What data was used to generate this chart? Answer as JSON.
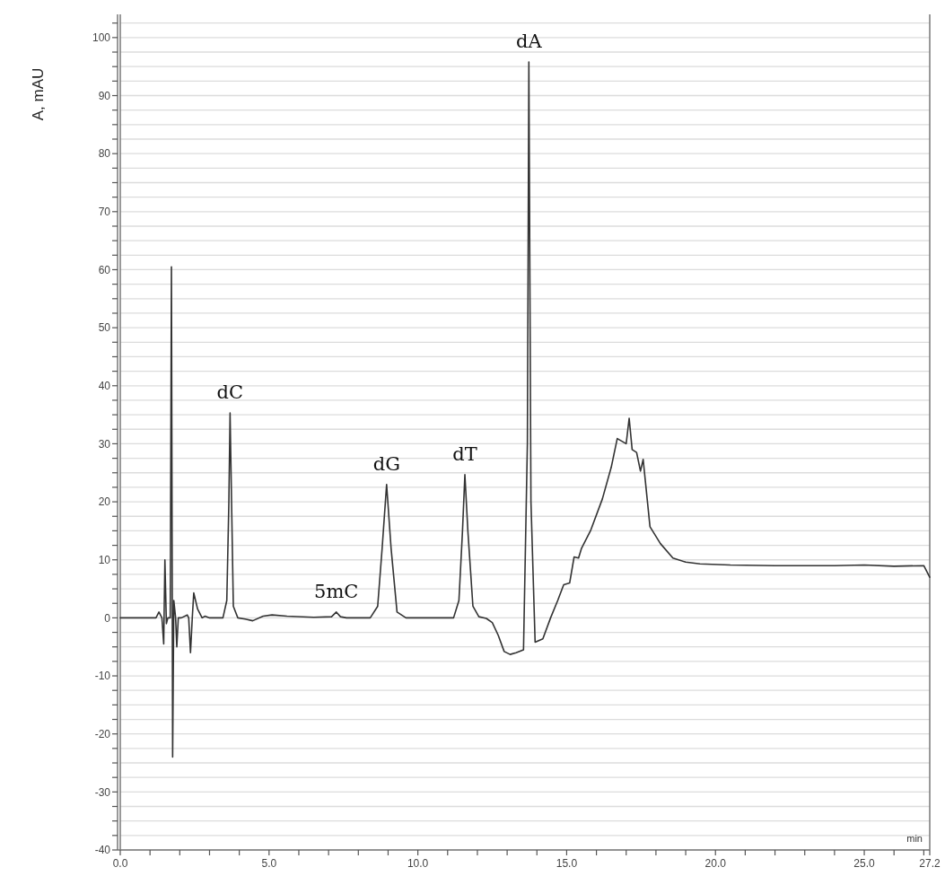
{
  "chart_data": {
    "type": "line",
    "ylabel": "A, mAU",
    "xlabel": "min",
    "grid": "y",
    "line_style": "solid",
    "marker": "none",
    "xlim": [
      0,
      27.2
    ],
    "ylim": [
      -40,
      104
    ],
    "xticks": [
      {
        "value": 0,
        "label": "0.0"
      },
      {
        "value": 1,
        "label": null
      },
      {
        "value": 2,
        "label": null
      },
      {
        "value": 3,
        "label": null
      },
      {
        "value": 4,
        "label": null
      },
      {
        "value": 5,
        "label": "5.0"
      },
      {
        "value": 6,
        "label": null
      },
      {
        "value": 7,
        "label": null
      },
      {
        "value": 8,
        "label": null
      },
      {
        "value": 9,
        "label": null
      },
      {
        "value": 10,
        "label": "10.0"
      },
      {
        "value": 11,
        "label": null
      },
      {
        "value": 12,
        "label": null
      },
      {
        "value": 13,
        "label": null
      },
      {
        "value": 14,
        "label": null
      },
      {
        "value": 15,
        "label": "15.0"
      },
      {
        "value": 16,
        "label": null
      },
      {
        "value": 17,
        "label": null
      },
      {
        "value": 18,
        "label": null
      },
      {
        "value": 19,
        "label": null
      },
      {
        "value": 20,
        "label": "20.0"
      },
      {
        "value": 21,
        "label": null
      },
      {
        "value": 22,
        "label": null
      },
      {
        "value": 23,
        "label": null
      },
      {
        "value": 24,
        "label": null
      },
      {
        "value": 25,
        "label": "25.0"
      },
      {
        "value": 26,
        "label": null
      },
      {
        "value": 27,
        "label": null
      },
      27.2
    ],
    "yticks": [
      -40,
      {
        "value": -37.5,
        "label": null
      },
      {
        "value": -35,
        "label": null
      },
      {
        "value": -32.5,
        "label": null
      },
      -30,
      {
        "value": -27.5,
        "label": null
      },
      {
        "value": -25,
        "label": null
      },
      {
        "value": -22.5,
        "label": null
      },
      -20,
      {
        "value": -17.5,
        "label": null
      },
      {
        "value": -15,
        "label": null
      },
      {
        "value": -12.5,
        "label": null
      },
      -10,
      {
        "value": -7.5,
        "label": null
      },
      {
        "value": -5,
        "label": null
      },
      {
        "value": -2.5,
        "label": null
      },
      0,
      {
        "value": 2.5,
        "label": null
      },
      {
        "value": 5,
        "label": null
      },
      {
        "value": 7.5,
        "label": null
      },
      10,
      {
        "value": 12.5,
        "label": null
      },
      {
        "value": 15,
        "label": null
      },
      {
        "value": 17.5,
        "label": null
      },
      20,
      {
        "value": 22.5,
        "label": null
      },
      {
        "value": 25,
        "label": null
      },
      {
        "value": 27.5,
        "label": null
      },
      30,
      {
        "value": 32.5,
        "label": null
      },
      {
        "value": 35,
        "label": null
      },
      {
        "value": 37.5,
        "label": null
      },
      40,
      {
        "value": 42.5,
        "label": null
      },
      {
        "value": 45,
        "label": null
      },
      {
        "value": 47.5,
        "label": null
      },
      50,
      {
        "value": 52.5,
        "label": null
      },
      {
        "value": 55,
        "label": null
      },
      {
        "value": 57.5,
        "label": null
      },
      60,
      {
        "value": 62.5,
        "label": null
      },
      {
        "value": 65,
        "label": null
      },
      {
        "value": 67.5,
        "label": null
      },
      70,
      {
        "value": 72.5,
        "label": null
      },
      {
        "value": 75,
        "label": null
      },
      {
        "value": 77.5,
        "label": null
      },
      80,
      {
        "value": 82.5,
        "label": null
      },
      {
        "value": 85,
        "label": null
      },
      {
        "value": 87.5,
        "label": null
      },
      90,
      {
        "value": 92.5,
        "label": null
      },
      {
        "value": 95,
        "label": null
      },
      {
        "value": 97.5,
        "label": null
      },
      100,
      {
        "value": 102.5,
        "label": null
      }
    ],
    "annotations": [
      {
        "text": "dC",
        "x": 3.69,
        "y": 35.3
      },
      {
        "text": "5mC",
        "x": 7.26,
        "y": 1
      },
      {
        "text": "dG",
        "x": 8.95,
        "y": 23
      },
      {
        "text": "dT",
        "x": 11.58,
        "y": 24.7
      },
      {
        "text": "dA",
        "x": 13.73,
        "y": 95.8
      }
    ],
    "series": [
      {
        "color": "#333333",
        "x": [
          0,
          1.2,
          1.3,
          1.4,
          1.46,
          1.5,
          1.55,
          1.6,
          1.68,
          1.72,
          1.76,
          1.8,
          1.86,
          1.9,
          1.95,
          2.05,
          2.25,
          2.3,
          2.36,
          2.42,
          2.47,
          2.6,
          2.75,
          2.85,
          3.0,
          3.2,
          3.45,
          3.58,
          3.65,
          3.69,
          3.74,
          3.8,
          3.95,
          4.2,
          4.45,
          4.8,
          5.1,
          5.6,
          6.5,
          7.1,
          7.26,
          7.4,
          7.6,
          8.4,
          8.65,
          8.8,
          8.95,
          9.1,
          9.3,
          9.6,
          10.5,
          11.2,
          11.38,
          11.5,
          11.58,
          11.68,
          11.85,
          12.05,
          12.3,
          12.5,
          12.7,
          12.9,
          13.1,
          13.3,
          13.55,
          13.68,
          13.73,
          13.8,
          13.94,
          14.2,
          14.46,
          14.7,
          14.9,
          15.1,
          15.25,
          15.4,
          15.5,
          15.8,
          16.2,
          16.5,
          16.7,
          17.0,
          17.1,
          17.2,
          17.35,
          17.48,
          17.57,
          17.8,
          18.15,
          18.57,
          19.0,
          19.48,
          20.5,
          22.0,
          24.0,
          25.0,
          26.0,
          27.0,
          27.2
        ],
        "values": [
          0,
          0,
          1,
          0,
          -4.5,
          10,
          -1,
          0,
          0,
          60.5,
          -24,
          3,
          0,
          -5,
          0,
          0,
          0.5,
          0,
          -6,
          0,
          4.3,
          1.5,
          0,
          0.3,
          0,
          0,
          0,
          3,
          20,
          35.3,
          20,
          2,
          0,
          -0.2,
          -0.5,
          0.3,
          0.5,
          0.3,
          0.1,
          0.2,
          1,
          0.2,
          0,
          0,
          2,
          12,
          23,
          12,
          1,
          0,
          0,
          0,
          3,
          15,
          24.7,
          15,
          2,
          0.2,
          -0.1,
          -0.8,
          -3,
          -5.8,
          -6.3,
          -6,
          -5.5,
          30,
          95.8,
          20,
          -4.2,
          -3.6,
          0,
          3,
          5.7,
          6,
          10.5,
          10.3,
          12,
          15,
          20.5,
          26,
          30.9,
          30,
          34.4,
          29,
          28.5,
          25.3,
          27.3,
          15.7,
          12.8,
          10.3,
          9.6,
          9.3,
          9.1,
          9.0,
          9.0,
          9.1,
          8.9,
          9.0,
          7
        ]
      }
    ]
  }
}
